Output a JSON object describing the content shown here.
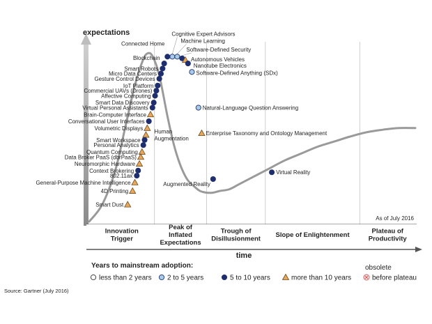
{
  "chart_data": {
    "type": "line",
    "title": "",
    "ylabel": "expectations",
    "xlabel": "time",
    "as_of": "As of July 2016",
    "source": "Source: Gartner (July 2016)",
    "xlim": [
      0,
      100
    ],
    "ylim": [
      0,
      100
    ],
    "grid": false,
    "legend_placement": "bottom",
    "curve": {
      "name": "hype-cycle",
      "x": [
        0,
        4,
        8,
        11,
        14,
        16.5,
        18,
        19.5,
        21.5,
        24,
        26,
        28,
        30,
        32,
        34,
        36,
        38,
        40,
        43,
        46,
        50,
        55,
        60,
        65,
        70,
        75,
        80,
        85,
        90,
        95,
        100
      ],
      "y": [
        0,
        10,
        30,
        55,
        80,
        95,
        99,
        97,
        86,
        62,
        45,
        33,
        25,
        21,
        18,
        17,
        17,
        18,
        19,
        22,
        26,
        31,
        36,
        40,
        44,
        47,
        50,
        52.5,
        54,
        55,
        55
      ]
    },
    "phases": [
      {
        "label": "Innovation Trigger",
        "lines": [
          "Innovation",
          "Trigger"
        ],
        "x_start": 0,
        "x_end": 20
      },
      {
        "label": "Peak of Inflated Expectations",
        "lines": [
          "Peak of",
          "Inflated",
          "Expectations"
        ],
        "x_start": 20,
        "x_end": 36
      },
      {
        "label": "Trough of Disillusionment",
        "lines": [
          "Trough of",
          "Disillusionment"
        ],
        "x_start": 36,
        "x_end": 54
      },
      {
        "label": "Slope of Enlightenment",
        "lines": [
          "Slope of Enlightenment"
        ],
        "x_start": 54,
        "x_end": 83
      },
      {
        "label": "Plateau of Productivity",
        "lines": [
          "Plateau of",
          "Productivity"
        ],
        "x_start": 83,
        "x_end": 100
      }
    ],
    "legend": {
      "title": "Years to mainstream adoption:",
      "items": [
        {
          "key": "lt2",
          "label": "less than 2 years",
          "marker": "circle",
          "color": "#ffffff"
        },
        {
          "key": "2to5",
          "label": "2 to 5 years",
          "marker": "circle",
          "color": "#a8cbe8"
        },
        {
          "key": "5to10",
          "label": "5 to 10 years",
          "marker": "circle",
          "color": "#1f2f6e"
        },
        {
          "key": "gt10",
          "label": "more than 10 years",
          "marker": "triangle",
          "color": "#e8a85c"
        },
        {
          "key": "obsolete",
          "label": "before plateau",
          "label_top": "obsolete",
          "marker": "cross",
          "color": "#d95a5a"
        }
      ]
    },
    "technologies": [
      {
        "name": "Cognitive Expert Advisors",
        "x": 25.5,
        "y": 97,
        "category": "2to5",
        "side": "right"
      },
      {
        "name": "Machine Learning",
        "x": 27.0,
        "y": 97,
        "category": "2to5",
        "side": "right"
      },
      {
        "name": "Software-Defined Security",
        "x": 28.5,
        "y": 96,
        "category": "5to10",
        "side": "right"
      },
      {
        "name": "Autonomous Vehicles",
        "x": 29.5,
        "y": 95,
        "category": "gt10",
        "side": "right"
      },
      {
        "name": "Nanotube Electronics",
        "x": 30.3,
        "y": 93,
        "category": "5to10",
        "side": "right"
      },
      {
        "name": "Software-Defined Anything (SDx)",
        "x": 31.5,
        "y": 88,
        "category": "2to5",
        "side": "right"
      },
      {
        "name": "Natural-Language Question Answering",
        "x": 33.5,
        "y": 67,
        "category": "2to5",
        "side": "right"
      },
      {
        "name": "Enterprise Taxonomy and Ontology Management",
        "x": 34.5,
        "y": 52,
        "category": "gt10",
        "side": "right"
      },
      {
        "name": "Augmented Reality",
        "x": 38,
        "y": 25,
        "category": "5to10",
        "side": "left"
      },
      {
        "name": "Virtual Reality",
        "x": 56,
        "y": 29,
        "category": "5to10",
        "side": "right"
      },
      {
        "name": "Connected Home",
        "x": 24.0,
        "y": 97,
        "category": "5to10",
        "side": "left"
      },
      {
        "name": "Blockchain",
        "x": 23.0,
        "y": 93,
        "category": "5to10",
        "side": "left"
      },
      {
        "name": "Smart Robots",
        "x": 22.5,
        "y": 90,
        "category": "5to10",
        "side": "left"
      },
      {
        "name": "Micro Data Centers",
        "x": 22.0,
        "y": 87,
        "category": "5to10",
        "side": "left"
      },
      {
        "name": "Gesture Control Devices",
        "x": 21.5,
        "y": 84,
        "category": "5to10",
        "side": "left"
      },
      {
        "name": "IoT Platform",
        "x": 21.0,
        "y": 80,
        "category": "5to10",
        "side": "left"
      },
      {
        "name": "Commercial UAVs (Drones)",
        "x": 20.6,
        "y": 77,
        "category": "5to10",
        "side": "left"
      },
      {
        "name": "Affective Computing",
        "x": 20.2,
        "y": 74,
        "category": "5to10",
        "side": "left"
      },
      {
        "name": "Smart Data Discovery",
        "x": 19.8,
        "y": 70,
        "category": "5to10",
        "side": "left"
      },
      {
        "name": "Virtual Personal Assistants",
        "x": 19.4,
        "y": 67,
        "category": "5to10",
        "side": "left"
      },
      {
        "name": "Brain-Computer Interface",
        "x": 18.8,
        "y": 63,
        "category": "gt10",
        "side": "left"
      },
      {
        "name": "Conversational User Interfaces",
        "x": 18.3,
        "y": 59,
        "category": "5to10",
        "side": "left"
      },
      {
        "name": "Volumetric Displays",
        "x": 17.8,
        "y": 55,
        "category": "gt10",
        "side": "left"
      },
      {
        "name": "Human Augmentation",
        "x": 17.4,
        "y": 51,
        "category": "gt10",
        "side": "right-wrap"
      },
      {
        "name": "Smart Workspace",
        "x": 17.0,
        "y": 48,
        "category": "5to10",
        "side": "left"
      },
      {
        "name": "Personal Analytics",
        "x": 16.6,
        "y": 45,
        "category": "5to10",
        "side": "left"
      },
      {
        "name": "Quantum Computing",
        "x": 16.2,
        "y": 41,
        "category": "gt10",
        "side": "left"
      },
      {
        "name": "Data Broker PaaS (dbrPaaS)",
        "x": 15.8,
        "y": 38,
        "category": "gt10",
        "side": "left"
      },
      {
        "name": "Neuromorphic Hardware",
        "x": 15.4,
        "y": 34,
        "category": "gt10",
        "side": "left"
      },
      {
        "name": "Context Brokering",
        "x": 15.0,
        "y": 30,
        "category": "5to10",
        "side": "left"
      },
      {
        "name": "802.11ax",
        "x": 14.6,
        "y": 27,
        "category": "5to10",
        "side": "left"
      },
      {
        "name": "General-Purpose Machine Intelligence",
        "x": 14.0,
        "y": 23,
        "category": "gt10",
        "side": "left"
      },
      {
        "name": "4D Printing",
        "x": 13.3,
        "y": 18,
        "category": "gt10",
        "side": "left"
      },
      {
        "name": "Smart Dust",
        "x": 11.8,
        "y": 10,
        "category": "gt10",
        "side": "left"
      }
    ]
  }
}
